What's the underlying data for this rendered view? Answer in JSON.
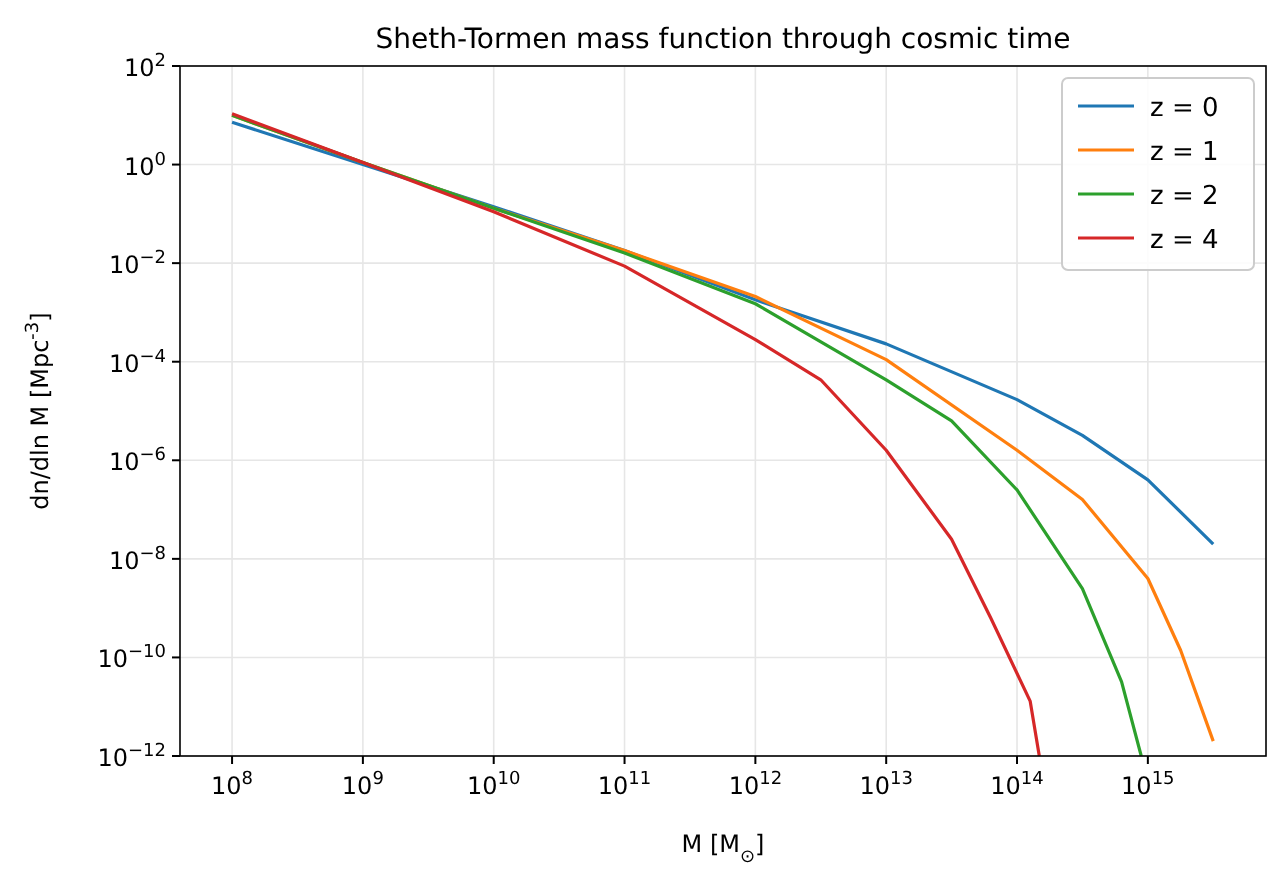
{
  "chart_data": {
    "type": "line",
    "title": "Sheth-Tormen mass function through cosmic time",
    "xlabel": "M [M$_{⊙}$]",
    "ylabel": "dn/dln M [Mpc$^{-3}$]",
    "log": "xy",
    "grid": true,
    "legend": "top right",
    "line_style": "solid",
    "marker": "none",
    "xlim": [
      40000000.0,
      8000000000000000.0
    ],
    "ylim": [
      1e-12,
      100
    ],
    "xticks": [
      {
        "value": 100000000.0,
        "label": "10$^{8}$"
      },
      {
        "value": 1000000000.0,
        "label": "10$^{9}$"
      },
      {
        "value": 10000000000.0,
        "label": "10$^{10}$"
      },
      {
        "value": 100000000000.0,
        "label": "10$^{11}$"
      },
      {
        "value": 1000000000000.0,
        "label": "10$^{12}$"
      },
      {
        "value": 10000000000000.0,
        "label": "10$^{13}$"
      },
      {
        "value": 100000000000000.0,
        "label": "10$^{14}$"
      },
      {
        "value": 1000000000000000.0,
        "label": "10$^{15}$"
      }
    ],
    "yticks": [
      {
        "value": 1e-12,
        "label": "10$^{−12}$"
      },
      {
        "value": 1e-10,
        "label": "10$^{−10}$"
      },
      {
        "value": 1e-08,
        "label": "10$^{−8}$"
      },
      {
        "value": 1e-06,
        "label": "10$^{−6}$"
      },
      {
        "value": 0.0001,
        "label": "10$^{−4}$"
      },
      {
        "value": 0.01,
        "label": "10$^{−2}$"
      },
      {
        "value": 1,
        "label": "10$^{0}$"
      },
      {
        "value": 100,
        "label": "10$^{2}$"
      }
    ],
    "series": [
      {
        "name": "z = 0",
        "color": "#1f77b4",
        "x": [
          100000000.0,
          1000000000.0,
          10000000000.0,
          100000000000.0,
          1000000000000.0,
          10000000000000.0,
          100000000000000.0,
          316000000000000.0,
          1000000000000000.0,
          3160000000000000.0
        ],
        "values": [
          7.2,
          1,
          0.14,
          0.018,
          0.0018,
          0.00023,
          1.7e-05,
          3.2e-06,
          4e-07,
          2e-08
        ]
      },
      {
        "name": "z = 1",
        "color": "#ff7f0e",
        "x": [
          100000000.0,
          1000000000.0,
          10000000000.0,
          100000000000.0,
          1000000000000.0,
          10000000000000.0,
          100000000000000.0,
          316000000000000.0,
          1000000000000000.0,
          1780000000000000.0,
          3160000000000000.0
        ],
        "values": [
          10,
          1.1,
          0.13,
          0.018,
          0.0021,
          0.00011,
          1.6e-06,
          1.6e-07,
          4e-09,
          1.4e-10,
          2e-12
        ]
      },
      {
        "name": "z = 2",
        "color": "#2ca02c",
        "x": [
          100000000.0,
          1000000000.0,
          10000000000.0,
          100000000000.0,
          1000000000000.0,
          10000000000000.0,
          31600000000000.0,
          100000000000000.0,
          316000000000000.0,
          630000000000000.0,
          890000000000000.0
        ],
        "values": [
          10,
          1.1,
          0.13,
          0.016,
          0.0015,
          4.3e-05,
          6.3e-06,
          2.5e-07,
          2.5e-09,
          3.2e-11,
          1e-12
        ]
      },
      {
        "name": "z = 4",
        "color": "#d62728",
        "x": [
          100000000.0,
          1000000000.0,
          10000000000.0,
          100000000000.0,
          1000000000000.0,
          3160000000000.0,
          10000000000000.0,
          31600000000000.0,
          63000000000000.0,
          126000000000000.0,
          148000000000000.0
        ],
        "values": [
          10.7,
          1.1,
          0.11,
          0.0087,
          0.00028,
          4.3e-05,
          1.6e-06,
          2.5e-08,
          6.3e-10,
          1.3e-11,
          1e-12
        ]
      }
    ]
  }
}
